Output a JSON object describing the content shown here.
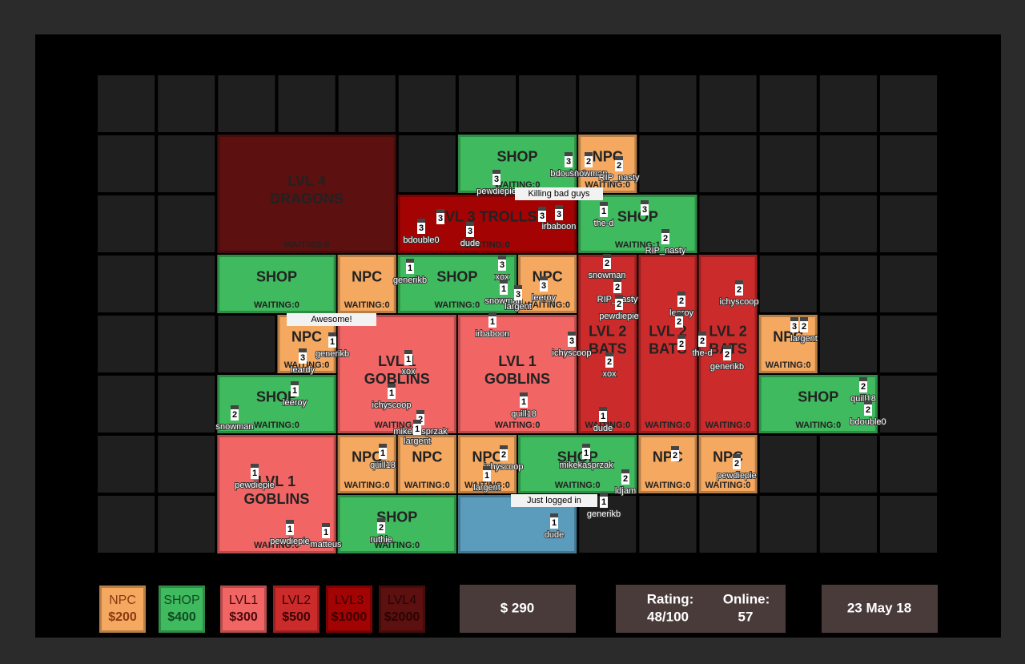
{
  "rooms": [
    {
      "lines": [
        "LVL 4",
        "DRAGONS"
      ],
      "waiting": "WAITING:0",
      "color": "#5c1010"
    },
    {
      "lines": [
        "SHOP"
      ],
      "waiting": "WAITING:0",
      "color": "#3fba5e"
    },
    {
      "lines": [
        "NPC"
      ],
      "waiting": "WAITING:0",
      "color": "#f4a860"
    },
    {
      "lines": [
        "LVL 3 TROLLS"
      ],
      "waiting": "WAITING:0",
      "color": "#a30303"
    },
    {
      "lines": [
        "SHOP"
      ],
      "waiting": "WAITING:1",
      "color": "#3fba5e"
    },
    {
      "lines": [
        "SHOP"
      ],
      "waiting": "WAITING:0",
      "color": "#3fba5e"
    },
    {
      "lines": [
        "NPC"
      ],
      "waiting": "WAITING:0",
      "color": "#f4a860"
    },
    {
      "lines": [
        "SHOP"
      ],
      "waiting": "WAITING:0",
      "color": "#3fba5e"
    },
    {
      "lines": [
        "NPC"
      ],
      "waiting": "WAITING:0",
      "color": "#f4a860"
    },
    {
      "lines": [
        "LVL 2",
        "BATS"
      ],
      "waiting": "WAITING:0",
      "color": "#cc2b2b"
    },
    {
      "lines": [
        "LVL 2",
        "BATS"
      ],
      "waiting": "WAITING:0",
      "color": "#cc2b2b"
    },
    {
      "lines": [
        "LVL 2",
        "BATS"
      ],
      "waiting": "WAITING:0",
      "color": "#cc2b2b"
    },
    {
      "lines": [
        "NPC"
      ],
      "waiting": "WAITING:0",
      "color": "#f4a860"
    },
    {
      "lines": [
        "LVL 1",
        "GOBLINS"
      ],
      "waiting": "WAITING:0",
      "color": "#f26565"
    },
    {
      "lines": [
        "LVL 1",
        "GOBLINS"
      ],
      "waiting": "WAITING:0",
      "color": "#f26565"
    },
    {
      "lines": [
        "NPC"
      ],
      "waiting": "WAITING:0",
      "color": "#f4a860"
    },
    {
      "lines": [
        "SHOP"
      ],
      "waiting": "WAITING:0",
      "color": "#3fba5e"
    },
    {
      "lines": [
        "SHOP"
      ],
      "waiting": "WAITING:0",
      "color": "#3fba5e"
    },
    {
      "lines": [
        "LVL 1",
        "GOBLINS"
      ],
      "waiting": "WAITING:0",
      "color": "#f26565"
    },
    {
      "lines": [
        "NPC"
      ],
      "waiting": "WAITING:0",
      "color": "#f4a860"
    },
    {
      "lines": [
        "NPC"
      ],
      "waiting": "WAITING:0",
      "color": "#f4a860"
    },
    {
      "lines": [
        "NPC"
      ],
      "waiting": "WAITING:0",
      "color": "#f4a860"
    },
    {
      "lines": [
        "SHOP"
      ],
      "waiting": "WAITING:0",
      "color": "#3fba5e"
    },
    {
      "lines": [
        "NPC"
      ],
      "waiting": "WAITING:0",
      "color": "#f4a860"
    },
    {
      "lines": [
        "NPC"
      ],
      "waiting": "WAITING:0",
      "color": "#f4a860"
    },
    {
      "lines": [
        "SHOP"
      ],
      "waiting": "WAITING:0",
      "color": "#3fba5e"
    },
    {
      "lines": [],
      "color": "#5b9cbd"
    }
  ],
  "players": [
    {
      "level": 3,
      "name": "pewdiepie"
    },
    {
      "level": 3,
      "name": "bdouble0"
    },
    {
      "level": 2,
      "name": "snowman"
    },
    {
      "level": 2,
      "name": "RIP_nasty"
    },
    {
      "level": 3,
      "name": "bdouble0"
    },
    {
      "level": 3
    },
    {
      "level": 3,
      "name": "dude"
    },
    {
      "level": 3
    },
    {
      "level": 3,
      "name": "irbaboon"
    },
    {
      "level": 1,
      "name": "the-d"
    },
    {
      "level": 3
    },
    {
      "level": 2,
      "name": "RIP_nasty"
    },
    {
      "level": 1,
      "name": "generikb"
    },
    {
      "level": 3,
      "name": "xox"
    },
    {
      "level": 1,
      "name": "snowman"
    },
    {
      "level": 3,
      "name": "largent"
    },
    {
      "level": 3,
      "name": "leeroy"
    },
    {
      "level": 2,
      "name": "snowman"
    },
    {
      "level": 2,
      "name": "RIP_nasty"
    },
    {
      "level": 2,
      "name": "pewdiepie"
    },
    {
      "level": 2,
      "name": "leeroy"
    },
    {
      "level": 2
    },
    {
      "level": 2,
      "name": "ichyscoop"
    },
    {
      "level": 1,
      "name": "irbaboon"
    },
    {
      "level": 3,
      "name": "ichyscoop"
    },
    {
      "level": 3
    },
    {
      "level": 2,
      "name": "largent"
    },
    {
      "level": 1,
      "name": "generikb"
    },
    {
      "level": 3,
      "name": "leardy"
    },
    {
      "level": 1,
      "name": "xox"
    },
    {
      "level": 1,
      "name": "ichyscoop"
    },
    {
      "level": 2
    },
    {
      "level": 2,
      "name": "the-d"
    },
    {
      "level": 2,
      "name": "generikb"
    },
    {
      "level": 2,
      "name": "xox"
    },
    {
      "level": 1,
      "name": "leeroy"
    },
    {
      "level": 1,
      "name": "quill18"
    },
    {
      "level": 1,
      "name": "dude"
    },
    {
      "level": 2,
      "name": "quill18"
    },
    {
      "level": 2,
      "name": "bdouble0"
    },
    {
      "level": 2,
      "name": "snowman"
    },
    {
      "level": 2,
      "name": "mikekasprzak"
    },
    {
      "level": 1,
      "name": "largent"
    },
    {
      "level": 1,
      "name": "quill18"
    },
    {
      "level": 2,
      "name": "ichyscoop"
    },
    {
      "level": 1,
      "name": "largent"
    },
    {
      "level": 1,
      "name": "mikekasprzak"
    },
    {
      "level": 2
    },
    {
      "level": 2,
      "name": "pewdiepie"
    },
    {
      "level": 2,
      "name": "ldjam"
    },
    {
      "level": 1,
      "name": "pewdiepie"
    },
    {
      "level": 1,
      "name": "generikb"
    },
    {
      "level": 1,
      "name": "dude"
    },
    {
      "level": 1,
      "name": "pewdiepie"
    },
    {
      "level": 1,
      "name": "matteus"
    },
    {
      "level": 2,
      "name": "ruthie"
    }
  ],
  "bubbles": [
    "Killing bad guys",
    "Awesome!",
    "Just logged in"
  ],
  "legend": [
    {
      "name": "NPC",
      "price": "$200",
      "color": "#f4a860",
      "text": "#8a3a10"
    },
    {
      "name": "SHOP",
      "price": "$400",
      "color": "#3fba5e",
      "text": "#124a22"
    },
    {
      "name": "LVL1",
      "price": "$300",
      "color": "#f26565",
      "text": "#4a0a0a"
    },
    {
      "name": "LVL2",
      "price": "$500",
      "color": "#cc2b2b",
      "text": "#3a0505"
    },
    {
      "name": "LVL3",
      "price": "$1000",
      "color": "#a30303",
      "text": "#3a0000"
    },
    {
      "name": "LVL4",
      "price": "$2000",
      "color": "#5c1010",
      "text": "#2a0404"
    }
  ],
  "money": "$ 290",
  "rating": {
    "label": "Rating:",
    "value": "48/100"
  },
  "online": {
    "label": "Online:",
    "value": "57"
  },
  "date": "23 May 18"
}
